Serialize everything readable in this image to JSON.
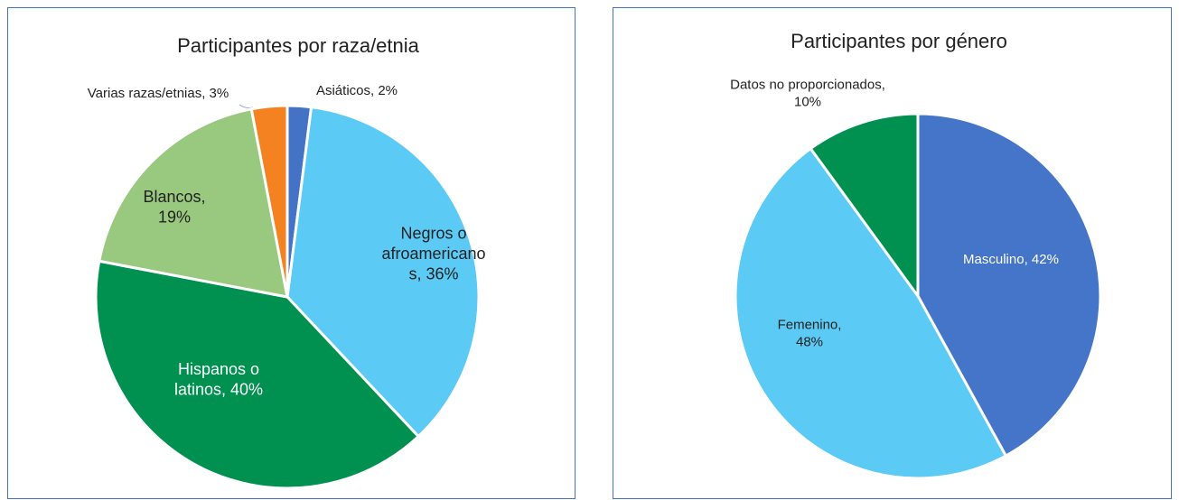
{
  "chart_data": [
    {
      "type": "pie",
      "title": "Participantes por raza/etnia",
      "values": [
        2,
        36,
        40,
        19,
        3
      ],
      "value_labels": [
        "Asiáticos, 2%",
        "Negros o afroamericanos, 36%",
        "Hispanos o latinos, 40%",
        "Blancos, 19%",
        "Varias razas/etnias, 3%"
      ],
      "colors": [
        "#4472c4",
        "#5bcbf5",
        "#00904f",
        "#98c97f",
        "#f58220"
      ]
    },
    {
      "type": "pie",
      "title": "Participantes por género",
      "values": [
        42,
        48,
        10
      ],
      "value_labels": [
        "Masculino, 42%",
        "Femenino, 48%",
        "Datos no proporcionados, 10%"
      ],
      "colors": [
        "#4475c8",
        "#5bcbf5",
        "#00904f"
      ]
    }
  ]
}
